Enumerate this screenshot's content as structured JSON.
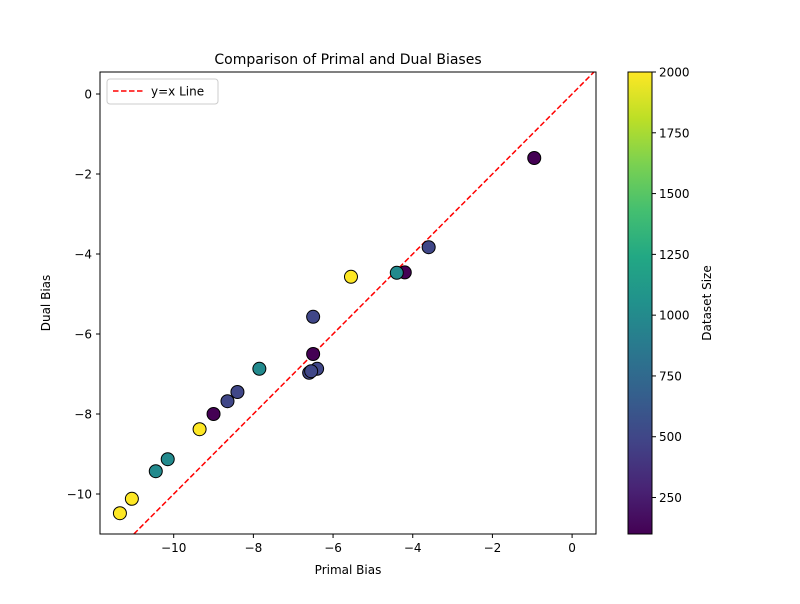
{
  "chart_data": {
    "type": "scatter",
    "title": "Comparison of Primal and Dual Biases",
    "xlabel": "Primal Bias",
    "ylabel": "Dual Bias",
    "xlim": [
      -11.85,
      0.6
    ],
    "ylim": [
      -11.0,
      0.55
    ],
    "xticks": [
      -10,
      -8,
      -6,
      -4,
      -2,
      0
    ],
    "yticks": [
      -10,
      -8,
      -6,
      -4,
      -2,
      0
    ],
    "xtick_labels": [
      "−10",
      "−8",
      "−6",
      "−4",
      "−2",
      "0"
    ],
    "ytick_labels": [
      "−10",
      "−8",
      "−6",
      "−4",
      "−2",
      "0"
    ],
    "grid": false,
    "legend": {
      "position": "upper-left",
      "entries": [
        "y=x Line"
      ]
    },
    "reference_line": {
      "label": "y=x Line",
      "color": "#ff0000",
      "style": "dashed"
    },
    "colorbar": {
      "label": "Dataset Size",
      "colormap": "viridis",
      "range": [
        100,
        2000
      ],
      "ticks": [
        250,
        500,
        750,
        1000,
        1250,
        1500,
        1750,
        2000
      ],
      "tick_labels": [
        "250",
        "500",
        "750",
        "1000",
        "1250",
        "1500",
        "1750",
        "2000"
      ]
    },
    "points": [
      {
        "x": -11.35,
        "y": -10.48,
        "size": 2000
      },
      {
        "x": -11.05,
        "y": -10.12,
        "size": 2000
      },
      {
        "x": -10.45,
        "y": -9.43,
        "size": 1000
      },
      {
        "x": -10.15,
        "y": -9.13,
        "size": 1000
      },
      {
        "x": -9.35,
        "y": -8.38,
        "size": 2000
      },
      {
        "x": -9.0,
        "y": -8.0,
        "size": 100
      },
      {
        "x": -8.65,
        "y": -7.68,
        "size": 500
      },
      {
        "x": -8.4,
        "y": -7.45,
        "size": 500
      },
      {
        "x": -7.85,
        "y": -6.87,
        "size": 1000
      },
      {
        "x": -6.4,
        "y": -6.87,
        "size": 500
      },
      {
        "x": -6.6,
        "y": -6.97,
        "size": 500
      },
      {
        "x": -6.55,
        "y": -6.93,
        "size": 500
      },
      {
        "x": -6.5,
        "y": -6.5,
        "size": 100
      },
      {
        "x": -6.5,
        "y": -5.57,
        "size": 500
      },
      {
        "x": -5.55,
        "y": -4.57,
        "size": 2000
      },
      {
        "x": -4.2,
        "y": -4.46,
        "size": 100
      },
      {
        "x": -4.4,
        "y": -4.47,
        "size": 1000
      },
      {
        "x": -3.6,
        "y": -3.83,
        "size": 500
      },
      {
        "x": -0.95,
        "y": -1.6,
        "size": 100
      }
    ]
  }
}
